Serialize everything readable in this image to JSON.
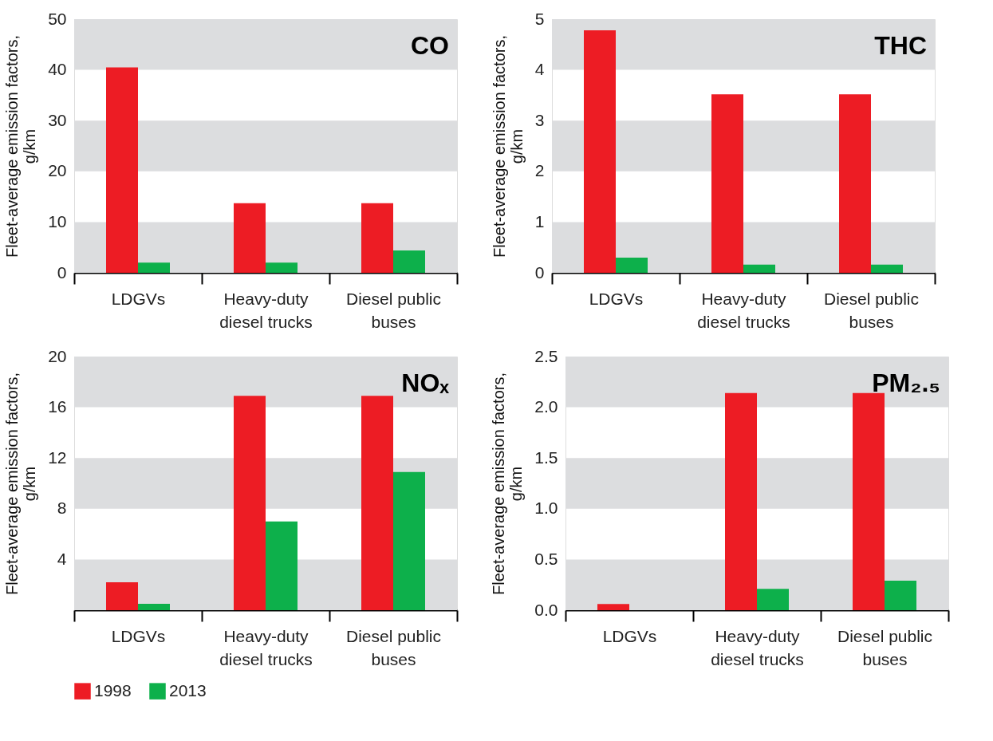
{
  "chart_data": [
    {
      "type": "bar",
      "title": "CO",
      "ylabel": "Fleet-average emission factors, g/km",
      "categories": [
        "LDGVs",
        "Heavy-duty diesel trucks",
        "Diesel public buses"
      ],
      "series": [
        {
          "name": "1998",
          "color": "#ed1c24",
          "values": [
            40.5,
            13.7,
            13.7
          ]
        },
        {
          "name": "2013",
          "color": "#0db04b",
          "values": [
            2.0,
            2.0,
            4.4
          ]
        }
      ],
      "ylim": [
        0,
        50
      ],
      "yticks": [
        0,
        10,
        20,
        30,
        40,
        50
      ],
      "bands": [
        {
          "axis": "y",
          "from": 0,
          "to": 10,
          "color": "#dcdddf"
        },
        {
          "axis": "y",
          "from": 20,
          "to": 30,
          "color": "#dcdddf"
        },
        {
          "axis": "y",
          "from": 40,
          "to": 50,
          "color": "#dcdddf"
        }
      ],
      "legend": "bottom"
    },
    {
      "type": "bar",
      "title": "THC",
      "ylabel": "Fleet-average emission factors, g/km",
      "categories": [
        "LDGVs",
        "Heavy-duty diesel trucks",
        "Diesel public buses"
      ],
      "series": [
        {
          "name": "1998",
          "color": "#ed1c24",
          "values": [
            4.78,
            3.52,
            3.52
          ]
        },
        {
          "name": "2013",
          "color": "#0db04b",
          "values": [
            0.3,
            0.16,
            0.16
          ]
        }
      ],
      "ylim": [
        0,
        5
      ],
      "yticks": [
        0,
        1,
        2,
        3,
        4,
        5
      ],
      "bands": [
        {
          "axis": "y",
          "from": 0,
          "to": 1,
          "color": "#dcdddf"
        },
        {
          "axis": "y",
          "from": 2,
          "to": 3,
          "color": "#dcdddf"
        },
        {
          "axis": "y",
          "from": 4,
          "to": 5,
          "color": "#dcdddf"
        }
      ],
      "legend": "bottom"
    },
    {
      "type": "bar",
      "title": "NOₓ",
      "ylabel": "Fleet-average emission factors, g/km",
      "categories": [
        "LDGVs",
        "Heavy-duty diesel trucks",
        "Diesel public buses"
      ],
      "series": [
        {
          "name": "1998",
          "color": "#ed1c24",
          "values": [
            2.2,
            16.9,
            16.9
          ]
        },
        {
          "name": "2013",
          "color": "#0db04b",
          "values": [
            0.5,
            7.0,
            10.9
          ]
        }
      ],
      "ylim": [
        0,
        20
      ],
      "yticks": [
        4,
        8,
        12,
        16,
        20
      ],
      "bands": [
        {
          "axis": "y",
          "from": 0,
          "to": 4,
          "color": "#dcdddf"
        },
        {
          "axis": "y",
          "from": 8,
          "to": 12,
          "color": "#dcdddf"
        },
        {
          "axis": "y",
          "from": 16,
          "to": 20,
          "color": "#dcdddf"
        }
      ],
      "legend": "bottom"
    },
    {
      "type": "bar",
      "title": "PM₂.₅",
      "ylabel": "Fleet-average emission factors, g/km",
      "categories": [
        "LDGVs",
        "Heavy-duty diesel trucks",
        "Diesel public buses"
      ],
      "series": [
        {
          "name": "1998",
          "color": "#ed1c24",
          "values": [
            0.06,
            2.14,
            2.14
          ]
        },
        {
          "name": "2013",
          "color": "#0db04b",
          "values": [
            null,
            0.21,
            0.29
          ]
        }
      ],
      "ylim": [
        0,
        2.5
      ],
      "yticks": [
        {
          "value": 0,
          "label": "0.0"
        },
        {
          "value": 0.5,
          "label": "0.5"
        },
        {
          "value": 1,
          "label": "1.0"
        },
        {
          "value": 1.5,
          "label": "1.5"
        },
        {
          "value": 2,
          "label": "2.0"
        },
        {
          "value": 2.5,
          "label": "2.5"
        }
      ],
      "bands": [
        {
          "axis": "y",
          "from": 0,
          "to": 0.5,
          "color": "#dcdddf"
        },
        {
          "axis": "y",
          "from": 1,
          "to": 1.5,
          "color": "#dcdddf"
        },
        {
          "axis": "y",
          "from": 2,
          "to": 2.5,
          "color": "#dcdddf"
        }
      ],
      "legend": "bottom"
    }
  ]
}
